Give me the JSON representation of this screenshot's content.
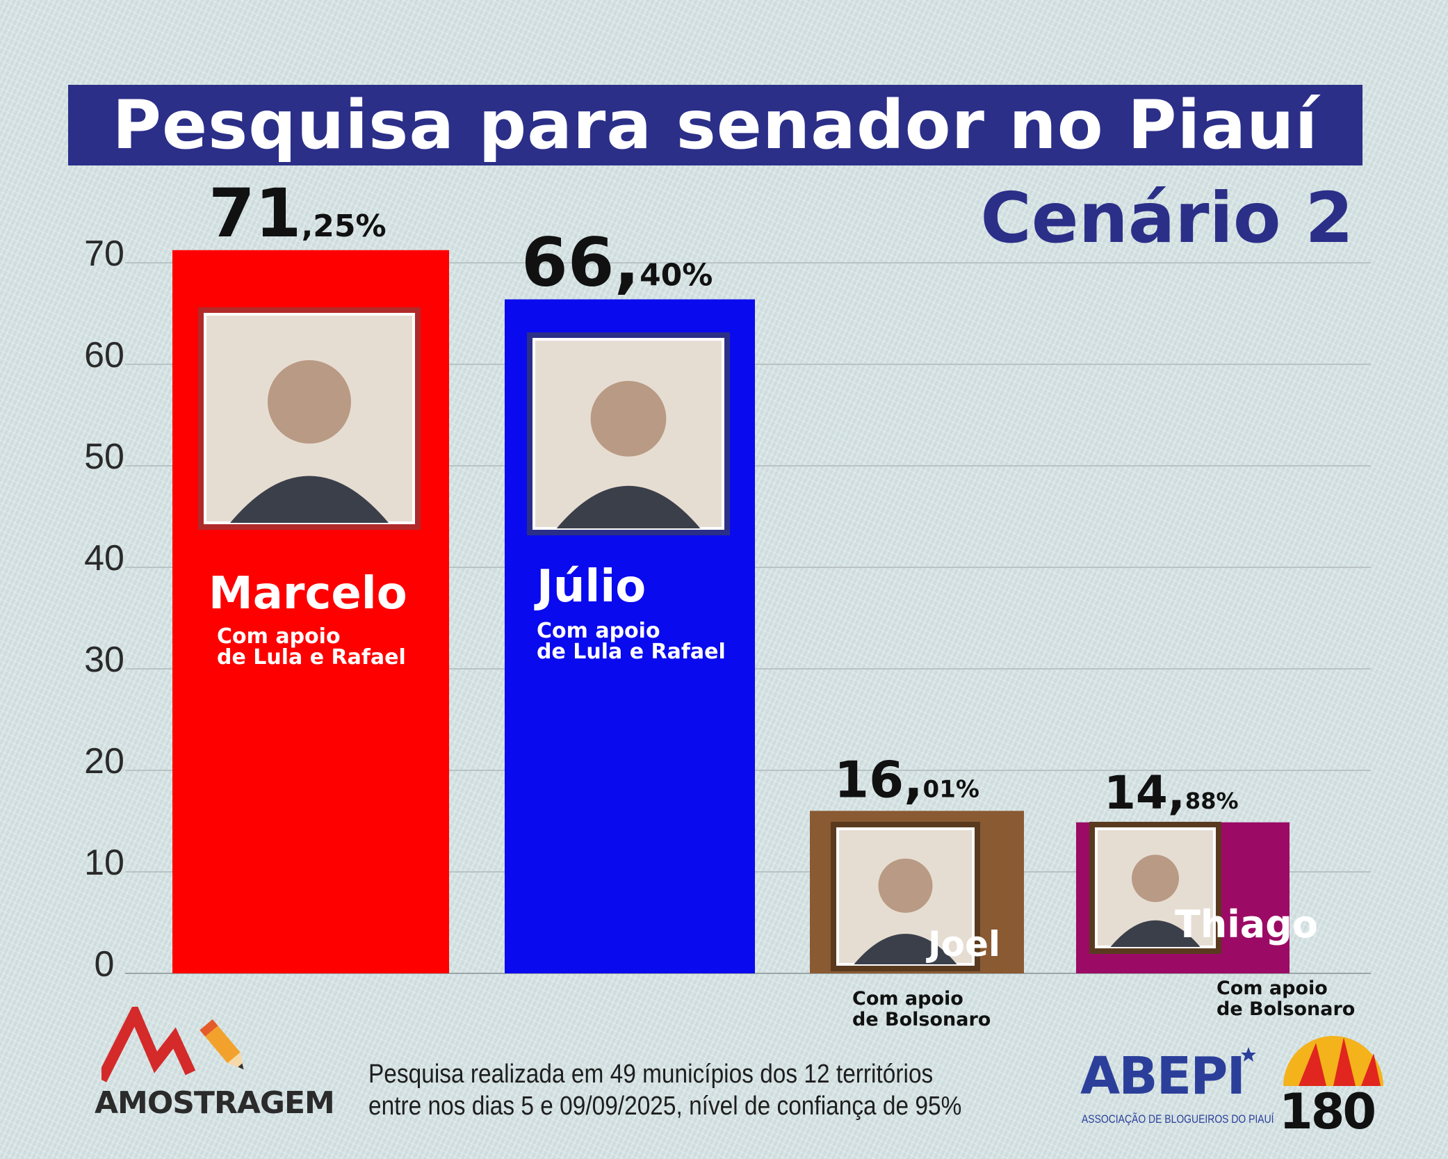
{
  "header": {
    "title": "Pesquisa para senador no Piauí",
    "subtitle": "Cenário 2"
  },
  "chart_data": {
    "type": "bar",
    "ylim": [
      0,
      70
    ],
    "yticks": [
      "0",
      "10",
      "20",
      "30",
      "40",
      "50",
      "60",
      "70"
    ],
    "grid": true,
    "categories": [
      "Marcelo",
      "Júlio",
      "Joel",
      "Thiago"
    ],
    "values": [
      71.25,
      66.4,
      16.01,
      14.88
    ],
    "value_labels": [
      {
        "int": "71",
        "dec": ",25%"
      },
      {
        "int": "66,",
        "dec": "40%"
      },
      {
        "int": "16,",
        "dec": "01%"
      },
      {
        "int": "14,",
        "dec": "88%"
      }
    ],
    "support": [
      [
        "Com apoio",
        "de Lula e Rafael"
      ],
      [
        "Com apoio",
        "de Lula e Rafael"
      ],
      [
        "Com apoio",
        "de Bolsonaro"
      ],
      [
        "Com apoio",
        "de Bolsonaro"
      ]
    ],
    "colors": [
      "#ff0000",
      "#0a0aee",
      "#8a5a33",
      "#9b0b65"
    ],
    "frame_colors": [
      "#b02a2a",
      "#2b2f88",
      "#5a3a1f",
      "#5a3a1f"
    ]
  },
  "footer": {
    "note_line1": "Pesquisa realizada em 49 municípios dos 12 territórios",
    "note_line2": "entre nos dias 5 e 09/09/2025, nível de confiança de 95%",
    "logo_amostragem": "AMOSTRAGEM",
    "logo_abepi": "ABEPI",
    "logo_abepi_sub": "ASSOCIAÇÃO DE BLOGUEIROS DO PIAUÍ",
    "logo_180": "180"
  },
  "icons": [
    "photo-placeholder-icon",
    "pencil-icon",
    "star-icon",
    "sun-icon"
  ]
}
